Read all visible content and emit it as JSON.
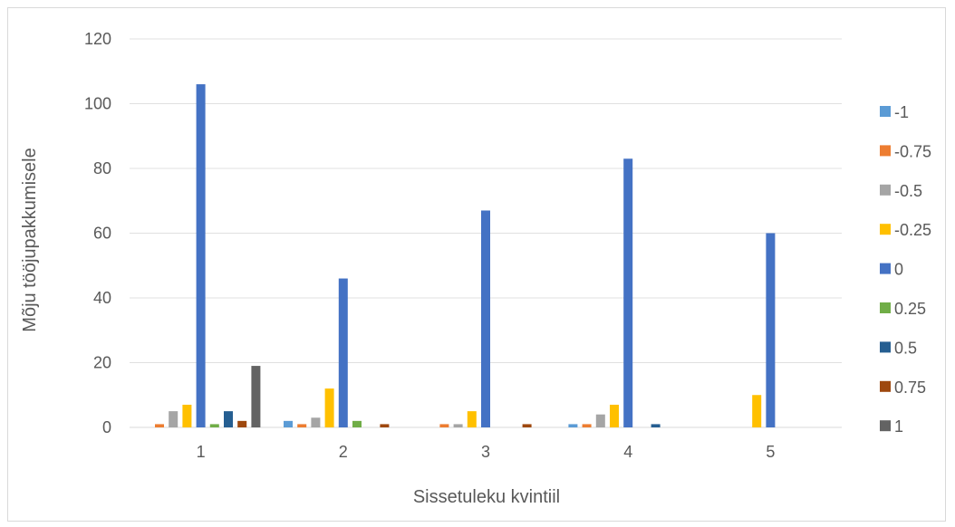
{
  "chart_data": {
    "type": "bar",
    "title": "",
    "xlabel": "Sissetuleku kvintiil",
    "ylabel": "Mõju tööjupakkumisele",
    "ylim": [
      0,
      120
    ],
    "yticks": [
      0,
      20,
      40,
      60,
      80,
      100,
      120
    ],
    "grid": true,
    "legend_position": "right",
    "categories": [
      "1",
      "2",
      "3",
      "4",
      "5"
    ],
    "series": [
      {
        "name": "-1",
        "color": "#5b9bd5",
        "values": [
          0,
          2,
          0,
          1,
          0
        ]
      },
      {
        "name": "-0.75",
        "color": "#ed7d31",
        "values": [
          1,
          1,
          1,
          1,
          0
        ]
      },
      {
        "name": "-0.5",
        "color": "#a5a5a5",
        "values": [
          5,
          3,
          1,
          4,
          0
        ]
      },
      {
        "name": "-0.25",
        "color": "#ffc000",
        "values": [
          7,
          12,
          5,
          7,
          10
        ]
      },
      {
        "name": "0",
        "color": "#4472c4",
        "values": [
          106,
          46,
          67,
          83,
          60
        ]
      },
      {
        "name": "0.25",
        "color": "#70ad47",
        "values": [
          1,
          2,
          0,
          0,
          0
        ]
      },
      {
        "name": "0.5",
        "color": "#255e91",
        "values": [
          5,
          0,
          0,
          1,
          0
        ]
      },
      {
        "name": "0.75",
        "color": "#9e480e",
        "values": [
          2,
          1,
          1,
          0,
          0
        ]
      },
      {
        "name": "1",
        "color": "#636363",
        "values": [
          19,
          0,
          0,
          0,
          0
        ]
      }
    ]
  }
}
